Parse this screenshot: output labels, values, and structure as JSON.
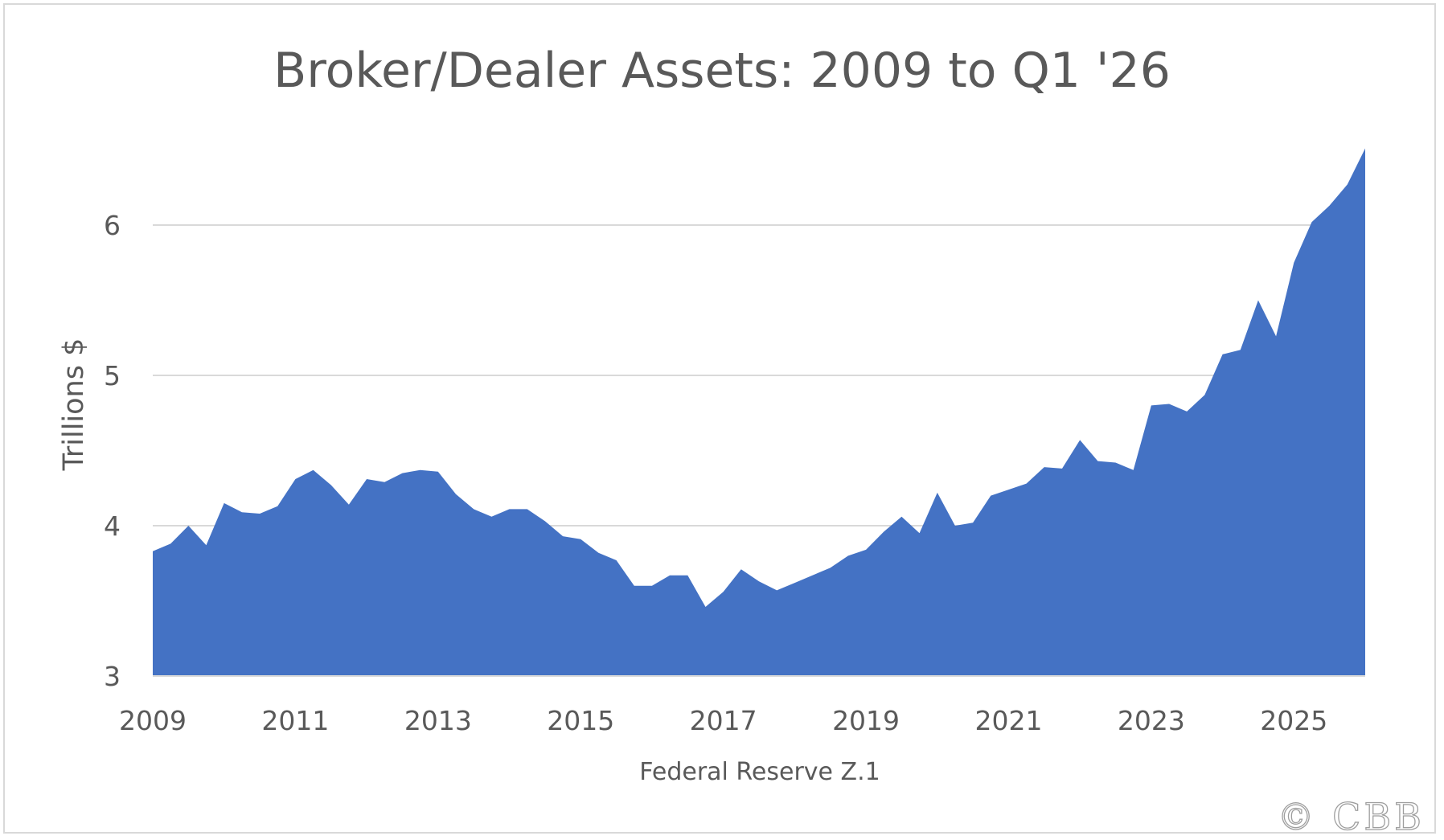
{
  "chart_data": {
    "type": "area",
    "title": "Broker/Dealer Assets: 2009 to Q1 '26",
    "xlabel": "",
    "ylabel": "Trillions $",
    "source": "Federal Reserve Z.1",
    "watermark": "© CBB",
    "xlim": [
      2009,
      2026
    ],
    "ylim": [
      3,
      6.5
    ],
    "y_ticks": [
      3,
      4,
      5,
      6
    ],
    "x_ticks": [
      2009,
      2011,
      2013,
      2015,
      2017,
      2019,
      2021,
      2023,
      2025
    ],
    "grid": true,
    "fill_color": "#4472c4",
    "series": [
      {
        "name": "",
        "x": [
          2009,
          2009.25,
          2009.5,
          2009.75,
          2010,
          2010.25,
          2010.5,
          2010.75,
          2011,
          2011.25,
          2011.5,
          2011.75,
          2012,
          2012.25,
          2012.5,
          2012.75,
          2013,
          2013.25,
          2013.5,
          2013.75,
          2014,
          2014.25,
          2014.5,
          2014.75,
          2015,
          2015.25,
          2015.5,
          2015.75,
          2016,
          2016.25,
          2016.5,
          2016.75,
          2017,
          2017.25,
          2017.5,
          2017.75,
          2018,
          2018.25,
          2018.5,
          2018.75,
          2019,
          2019.25,
          2019.5,
          2019.75,
          2020,
          2020.25,
          2020.5,
          2020.75,
          2021,
          2021.25,
          2021.5,
          2021.75,
          2022,
          2022.25,
          2022.5,
          2022.75,
          2023,
          2023.25,
          2023.5,
          2023.75,
          2024,
          2024.25,
          2024.5,
          2024.75,
          2025,
          2025.25,
          2025.5,
          2025.75,
          2026
        ],
        "values": [
          3.83,
          3.88,
          4.0,
          3.87,
          4.15,
          4.09,
          4.08,
          4.13,
          4.31,
          4.37,
          4.27,
          4.14,
          4.31,
          4.29,
          4.35,
          4.37,
          4.36,
          4.21,
          4.11,
          4.06,
          4.11,
          4.11,
          4.03,
          3.93,
          3.91,
          3.82,
          3.77,
          3.6,
          3.6,
          3.67,
          3.67,
          3.46,
          3.56,
          3.71,
          3.63,
          3.57,
          3.62,
          3.67,
          3.72,
          3.8,
          3.84,
          3.96,
          4.06,
          3.95,
          4.22,
          4.0,
          4.02,
          4.2,
          4.24,
          4.28,
          4.39,
          4.38,
          4.57,
          4.43,
          4.42,
          4.37,
          4.8,
          4.81,
          4.76,
          4.87,
          5.14,
          5.17,
          5.5,
          5.26,
          5.75,
          6.02,
          6.13,
          6.27,
          6.51
        ]
      }
    ]
  }
}
